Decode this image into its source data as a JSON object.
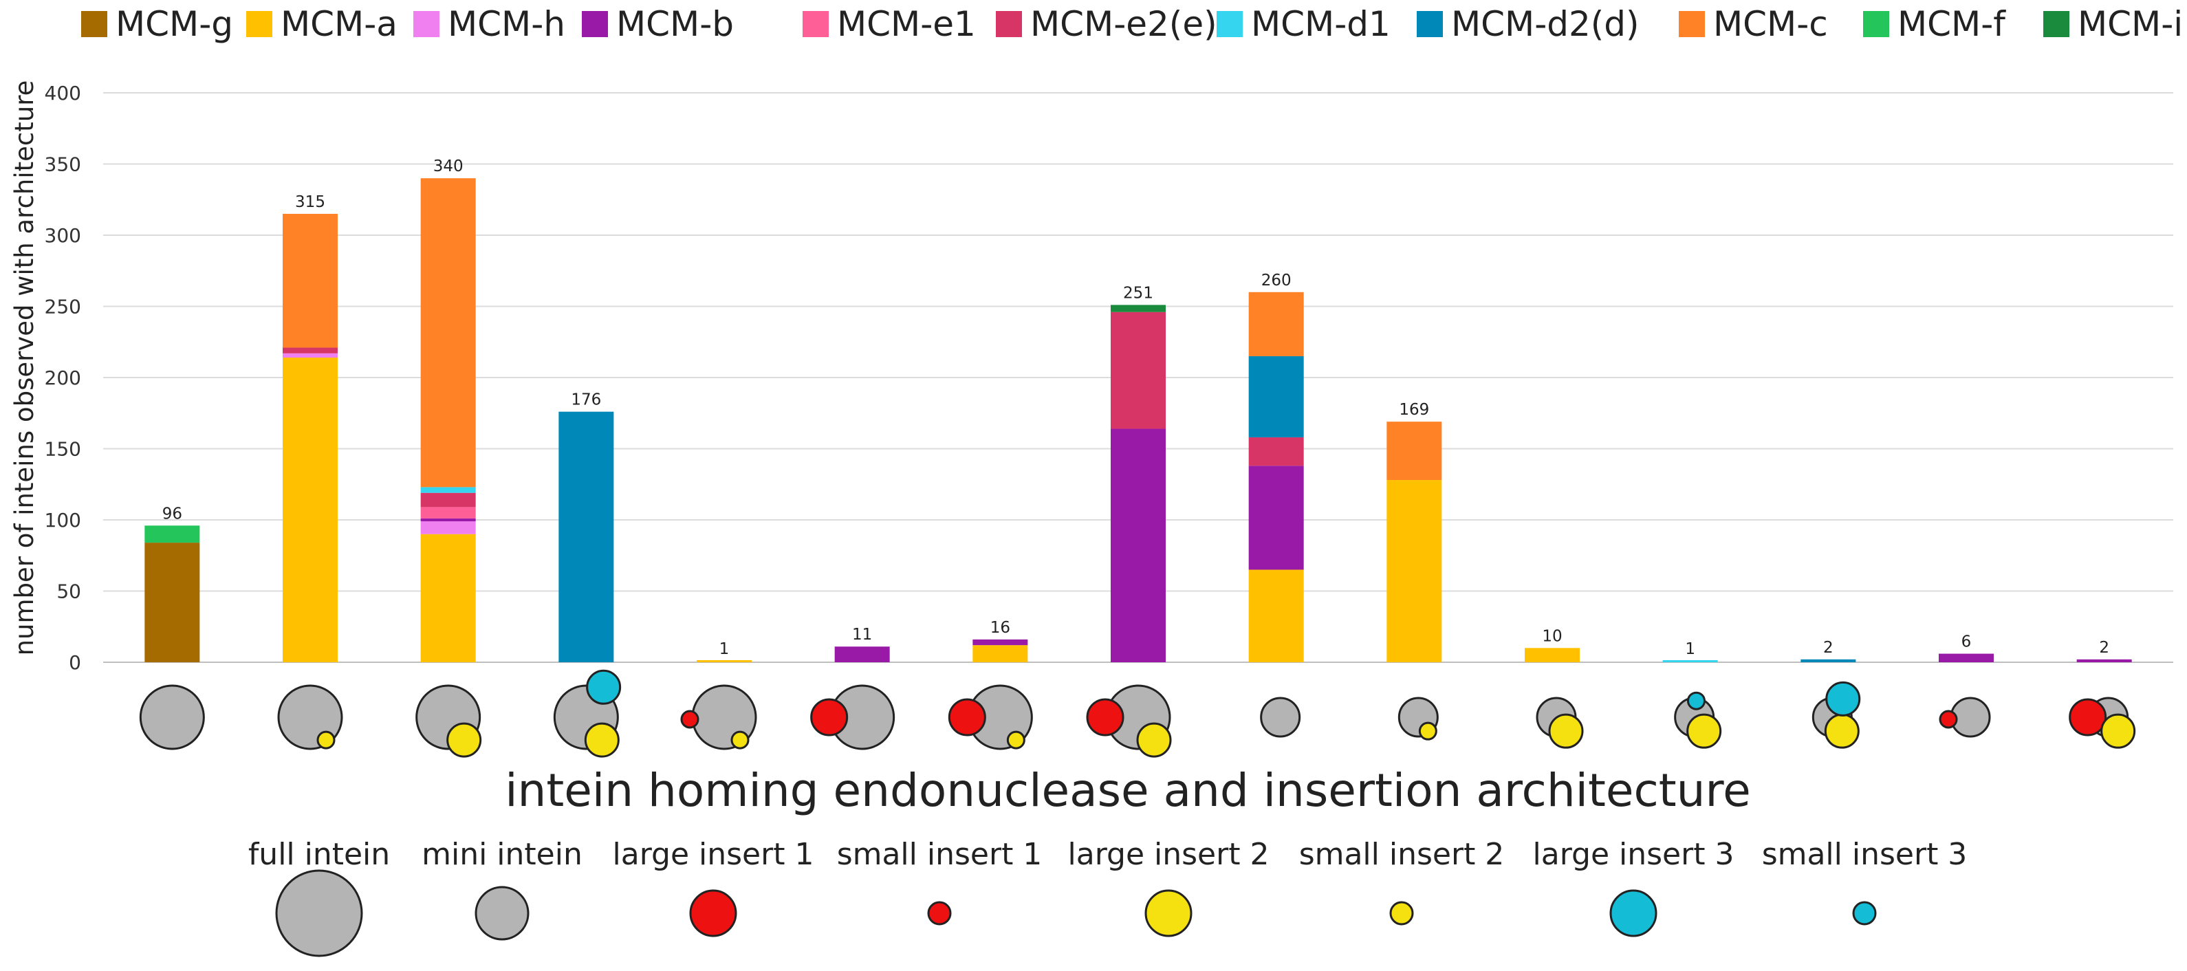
{
  "chart_data": {
    "type": "bar",
    "stacked": true,
    "title": "",
    "xlabel": "intein homing endonuclease and insertion architecture",
    "ylabel": "number of inteins observed with architecture",
    "ylim": [
      0,
      400
    ],
    "yticks": [
      0,
      50,
      100,
      150,
      200,
      250,
      300,
      350,
      400
    ],
    "grid": true,
    "legend_position": "top",
    "colors": {
      "MCM-g": "#a66b00",
      "MCM-a": "#ffc000",
      "MCM-h": "#f07ff0",
      "MCM-b": "#9a1aa8",
      "MCM-e1": "#ff5f97",
      "MCM-e2(e)": "#d83567",
      "MCM-d1": "#35d4ef",
      "MCM-d2(d)": "#0088b8",
      "MCM-c": "#ff8227",
      "MCM-f": "#24c65b",
      "MCM-i": "#1a8a3d"
    },
    "legend": [
      "MCM-g",
      "MCM-a",
      "MCM-h",
      "MCM-b",
      "MCM-e1",
      "MCM-e2(e)",
      "MCM-d1",
      "MCM-d2(d)",
      "MCM-c",
      "MCM-f",
      "MCM-i"
    ],
    "categories": [
      {
        "arch": [
          "full"
        ],
        "total": 96,
        "segments": [
          {
            "series": "MCM-g",
            "value": 84
          },
          {
            "series": "MCM-f",
            "value": 12
          }
        ]
      },
      {
        "arch": [
          "full",
          "small2"
        ],
        "total": 315,
        "segments": [
          {
            "series": "MCM-a",
            "value": 214
          },
          {
            "series": "MCM-h",
            "value": 3
          },
          {
            "series": "MCM-e2(e)",
            "value": 4
          },
          {
            "series": "MCM-c",
            "value": 94
          }
        ]
      },
      {
        "arch": [
          "full",
          "large2"
        ],
        "total": 340,
        "segments": [
          {
            "series": "MCM-a",
            "value": 90
          },
          {
            "series": "MCM-h",
            "value": 9
          },
          {
            "series": "MCM-b",
            "value": 2
          },
          {
            "series": "MCM-e1",
            "value": 8
          },
          {
            "series": "MCM-e2(e)",
            "value": 10
          },
          {
            "series": "MCM-d1",
            "value": 4
          },
          {
            "series": "MCM-c",
            "value": 217
          }
        ]
      },
      {
        "arch": [
          "full",
          "large2",
          "large3"
        ],
        "total": 176,
        "segments": [
          {
            "series": "MCM-d2(d)",
            "value": 176
          }
        ]
      },
      {
        "arch": [
          "full",
          "small1",
          "small2"
        ],
        "total": 1,
        "segments": [
          {
            "series": "MCM-a",
            "value": 1
          }
        ]
      },
      {
        "arch": [
          "full",
          "large1"
        ],
        "total": 11,
        "segments": [
          {
            "series": "MCM-b",
            "value": 11
          }
        ]
      },
      {
        "arch": [
          "full",
          "large1",
          "small2"
        ],
        "total": 16,
        "segments": [
          {
            "series": "MCM-a",
            "value": 12
          },
          {
            "series": "MCM-b",
            "value": 4
          }
        ]
      },
      {
        "arch": [
          "full",
          "large1",
          "large2"
        ],
        "total": 251,
        "segments": [
          {
            "series": "MCM-b",
            "value": 164
          },
          {
            "series": "MCM-e2(e)",
            "value": 82
          },
          {
            "series": "MCM-i",
            "value": 5
          }
        ]
      },
      {
        "arch": [
          "mini"
        ],
        "total": 260,
        "segments": [
          {
            "series": "MCM-a",
            "value": 65
          },
          {
            "series": "MCM-b",
            "value": 73
          },
          {
            "series": "MCM-e2(e)",
            "value": 20
          },
          {
            "series": "MCM-d2(d)",
            "value": 57
          },
          {
            "series": "MCM-c",
            "value": 45
          }
        ]
      },
      {
        "arch": [
          "mini",
          "small2"
        ],
        "total": 169,
        "segments": [
          {
            "series": "MCM-a",
            "value": 128
          },
          {
            "series": "MCM-c",
            "value": 41
          }
        ]
      },
      {
        "arch": [
          "mini",
          "large2"
        ],
        "total": 10,
        "segments": [
          {
            "series": "MCM-a",
            "value": 10
          }
        ]
      },
      {
        "arch": [
          "mini",
          "large2",
          "small3"
        ],
        "total": 1,
        "segments": [
          {
            "series": "MCM-d1",
            "value": 1
          }
        ]
      },
      {
        "arch": [
          "mini",
          "large2",
          "large3"
        ],
        "total": 2,
        "segments": [
          {
            "series": "MCM-d2(d)",
            "value": 2
          }
        ]
      },
      {
        "arch": [
          "mini",
          "small1"
        ],
        "total": 6,
        "segments": [
          {
            "series": "MCM-b",
            "value": 6
          }
        ]
      },
      {
        "arch": [
          "mini",
          "large1",
          "large2"
        ],
        "total": 2,
        "segments": [
          {
            "series": "MCM-b",
            "value": 2
          }
        ]
      }
    ],
    "key": [
      {
        "id": "full",
        "label": "full intein",
        "color": "#b4b4b4"
      },
      {
        "id": "mini",
        "label": "mini intein",
        "color": "#b4b4b4"
      },
      {
        "id": "large1",
        "label": "large insert 1",
        "color": "#ee1111"
      },
      {
        "id": "small1",
        "label": "small insert 1",
        "color": "#ee1111"
      },
      {
        "id": "large2",
        "label": "large insert 2",
        "color": "#f5e010"
      },
      {
        "id": "small2",
        "label": "small insert 2",
        "color": "#f5e010"
      },
      {
        "id": "large3",
        "label": "large insert 3",
        "color": "#14bcd6"
      },
      {
        "id": "small3",
        "label": "small insert 3",
        "color": "#14bcd6"
      }
    ]
  }
}
